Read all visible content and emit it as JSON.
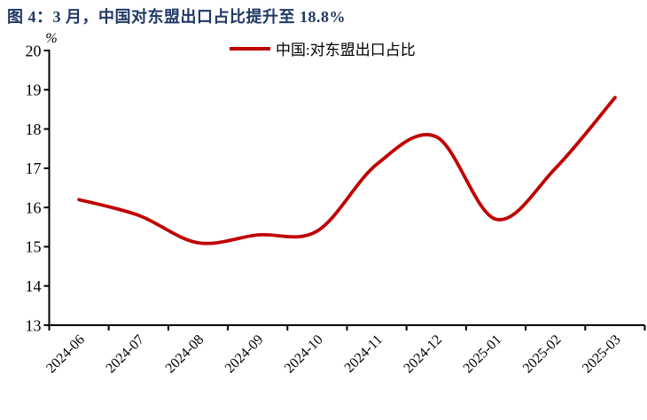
{
  "figure": {
    "title": "图 4：3 月，中国对东盟出口占比提升至 18.8%",
    "title_color": "#1F3864"
  },
  "chart_data": {
    "type": "line",
    "title": "图 4：3 月，中国对东盟出口占比提升至 18.8%",
    "unit_label": "%",
    "categories": [
      "2024-06",
      "2024-07",
      "2024-08",
      "2024-09",
      "2024-10",
      "2024-11",
      "2024-12",
      "2025-01",
      "2025-02",
      "2025-03"
    ],
    "series": [
      {
        "name": "中国:对东盟出口占比",
        "values": [
          16.2,
          15.8,
          15.1,
          15.3,
          15.4,
          17.1,
          17.8,
          15.7,
          17.0,
          18.8
        ],
        "color": "#C00000"
      }
    ],
    "xlabel": "",
    "ylabel": "%",
    "ylim": [
      13,
      20
    ],
    "ytick_step": 1,
    "ytick_labels": [
      "20",
      "19",
      "18",
      "17",
      "16",
      "15",
      "14",
      "13"
    ],
    "grid": false,
    "line_smooth": true,
    "legend_position": "top-center",
    "axis_color": "#000000"
  }
}
